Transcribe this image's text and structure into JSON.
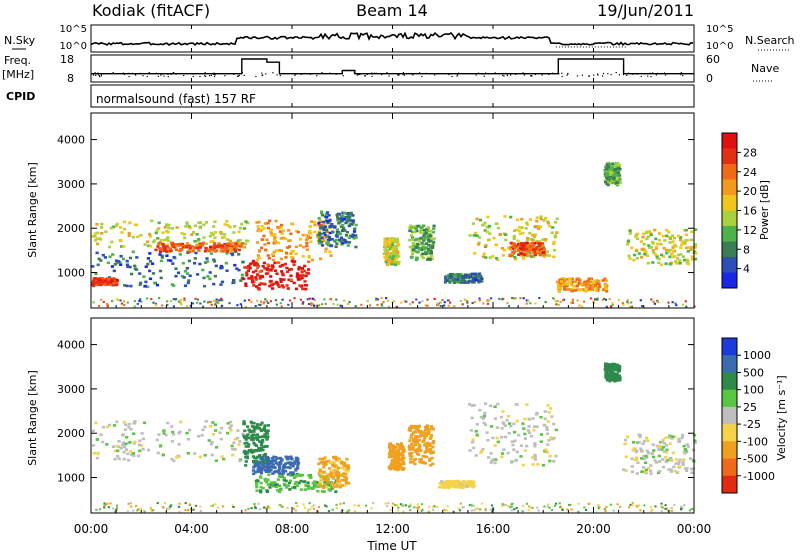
{
  "header": {
    "station": "Kodiak (fitACF)",
    "beam": "Beam 14",
    "date": "19/Jun/2011"
  },
  "top_panels": {
    "nsky_label": "N.Sky",
    "nsky_ticks": [
      "10^5",
      "10^0"
    ],
    "nsearch_label": "N.Search",
    "nsearch_ticks": [
      "10^5",
      "10^0"
    ],
    "freq_label": "Freq.",
    "freq_unit": "[MHz]",
    "freq_ticks": [
      "18",
      "8"
    ],
    "nave_label": "Nave",
    "nave_ticks": [
      "60",
      "0"
    ],
    "cpid_label": "CPID",
    "cpid_text": "normalsound (fast) 157 RF"
  },
  "chart_data": [
    {
      "type": "heatmap",
      "quantity": "Power",
      "ylabel": "Slant Range [km]",
      "ylim": [
        200,
        4600
      ],
      "yticks": [
        "1000",
        "2000",
        "3000",
        "4000"
      ],
      "xlim": [
        0,
        24
      ],
      "colorbar": {
        "label": "Power [dB]",
        "ticks": [
          "4",
          "8",
          "12",
          "16",
          "20",
          "24",
          "28"
        ],
        "colors": [
          "#1a28e6",
          "#2d4fb5",
          "#3a7d55",
          "#4cb24a",
          "#a8d23c",
          "#f2c51c",
          "#f39a1e",
          "#ee6a19",
          "#e33015",
          "#e01010"
        ]
      },
      "regions": [
        {
          "t0": 0.0,
          "t1": 6.2,
          "r0": 1600,
          "r1": 2200,
          "value": 16
        },
        {
          "t0": 0.0,
          "t1": 6.0,
          "r0": 700,
          "r1": 1500,
          "value": 8
        },
        {
          "t0": 0.0,
          "t1": 1.0,
          "r0": 750,
          "r1": 900,
          "value": 26
        },
        {
          "t0": 2.5,
          "t1": 6.0,
          "r0": 1500,
          "r1": 1700,
          "value": 24
        },
        {
          "t0": 6.0,
          "t1": 8.6,
          "r0": 650,
          "r1": 1300,
          "value": 28
        },
        {
          "t0": 6.5,
          "t1": 9.5,
          "r0": 1300,
          "r1": 2200,
          "value": 20
        },
        {
          "t0": 9.0,
          "t1": 10.5,
          "r0": 1600,
          "r1": 2400,
          "value": 8
        },
        {
          "t0": 11.6,
          "t1": 12.2,
          "r0": 1200,
          "r1": 1800,
          "value": 16
        },
        {
          "t0": 12.6,
          "t1": 13.6,
          "r0": 1300,
          "r1": 2100,
          "value": 12
        },
        {
          "t0": 14.0,
          "t1": 15.5,
          "r0": 800,
          "r1": 1000,
          "value": 8
        },
        {
          "t0": 15.0,
          "t1": 18.5,
          "r0": 1300,
          "r1": 2300,
          "value": 16
        },
        {
          "t0": 16.6,
          "t1": 18.0,
          "r0": 1400,
          "r1": 1700,
          "value": 24
        },
        {
          "t0": 18.5,
          "t1": 20.5,
          "r0": 600,
          "r1": 900,
          "value": 20
        },
        {
          "t0": 20.4,
          "t1": 21.0,
          "r0": 3000,
          "r1": 3500,
          "value": 12
        },
        {
          "t0": 21.3,
          "t1": 24.0,
          "r0": 1200,
          "r1": 2000,
          "value": 16
        }
      ]
    },
    {
      "type": "heatmap",
      "quantity": "Velocity",
      "ylabel": "Slant Range [km]",
      "ylim": [
        200,
        4600
      ],
      "yticks": [
        "1000",
        "2000",
        "3000",
        "4000"
      ],
      "xlim": [
        0,
        24
      ],
      "xlabel": "Time UT",
      "xticks": [
        "00:00",
        "04:00",
        "08:00",
        "12:00",
        "16:00",
        "20:00",
        "00:00"
      ],
      "colorbar": {
        "label": "Velocity [m s⁻¹]",
        "ticks": [
          "1000",
          "500",
          "100",
          "25",
          "-25",
          "-100",
          "-500",
          "-1000"
        ],
        "colors": [
          "#1c3bd8",
          "#3a6ab0",
          "#2d8a4a",
          "#58c640",
          "#bebebe",
          "#f5d24a",
          "#f0a020",
          "#ec6a1a",
          "#e02a12"
        ]
      },
      "regions": [
        {
          "t0": 0.0,
          "t1": 6.0,
          "r0": 1400,
          "r1": 2300,
          "value": 0
        },
        {
          "t0": 6.0,
          "t1": 7.0,
          "r0": 1300,
          "r1": 2300,
          "value": 150
        },
        {
          "t0": 6.4,
          "t1": 8.2,
          "r0": 1100,
          "r1": 1500,
          "value": 600
        },
        {
          "t0": 6.5,
          "t1": 9.8,
          "r0": 700,
          "r1": 1100,
          "value": 80
        },
        {
          "t0": 9.0,
          "t1": 10.2,
          "r0": 800,
          "r1": 1500,
          "value": -120
        },
        {
          "t0": 11.8,
          "t1": 12.4,
          "r0": 1200,
          "r1": 1800,
          "value": -200
        },
        {
          "t0": 12.6,
          "t1": 13.6,
          "r0": 1300,
          "r1": 2200,
          "value": -300
        },
        {
          "t0": 13.8,
          "t1": 15.2,
          "r0": 800,
          "r1": 950,
          "value": -60
        },
        {
          "t0": 15.0,
          "t1": 18.5,
          "r0": 1300,
          "r1": 2700,
          "value": 0
        },
        {
          "t0": 20.4,
          "t1": 21.0,
          "r0": 3200,
          "r1": 3600,
          "value": 200
        },
        {
          "t0": 21.0,
          "t1": 24.0,
          "r0": 1100,
          "r1": 2000,
          "value": 0
        }
      ]
    }
  ]
}
